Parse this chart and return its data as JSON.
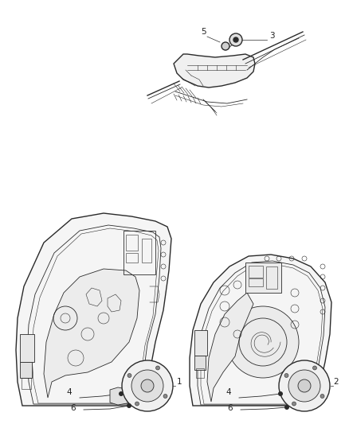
{
  "bg_color": "#ffffff",
  "fig_width": 4.38,
  "fig_height": 5.33,
  "dpi": 100,
  "line_color": "#2a2a2a",
  "text_color": "#222222",
  "label_fontsize": 7.5
}
